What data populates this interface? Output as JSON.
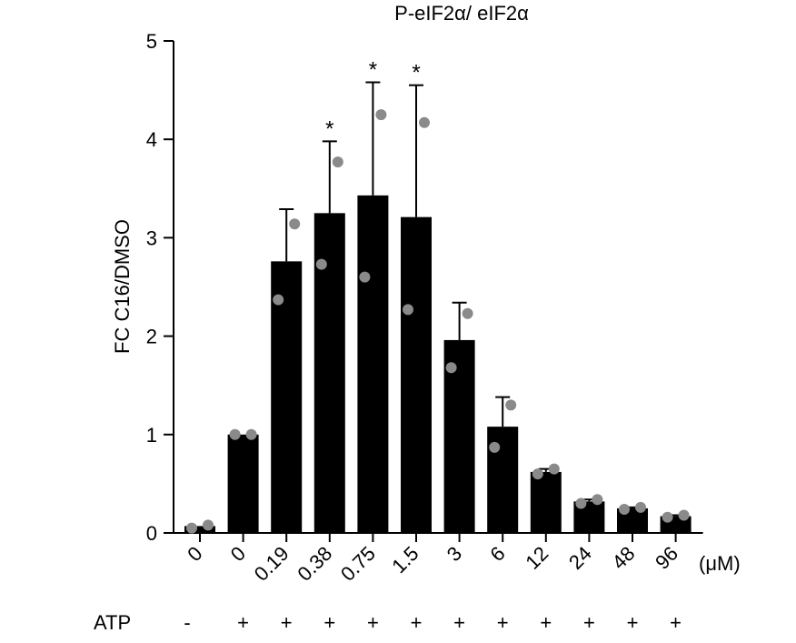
{
  "chart_data": {
    "type": "bar",
    "title": "P-eIF2α/ eIF2α",
    "xlabel": "",
    "ylabel": "FC C16/DMSO",
    "ylim": [
      0,
      5
    ],
    "yticks": [
      0,
      1,
      2,
      3,
      4,
      5
    ],
    "categories": [
      "0",
      "0",
      "0.19",
      "0.38",
      "0.75",
      "1.5",
      "3",
      "6",
      "12",
      "24",
      "48",
      "96"
    ],
    "x_unit": "(μM)",
    "values": [
      0.07,
      1.0,
      2.76,
      3.25,
      3.43,
      3.21,
      1.96,
      1.08,
      0.62,
      0.32,
      0.25,
      0.17
    ],
    "error_upper": [
      0.07,
      1.0,
      3.29,
      3.98,
      4.58,
      4.55,
      2.34,
      1.38,
      0.65,
      0.34,
      0.26,
      0.18
    ],
    "points": [
      [
        0.05,
        0.08
      ],
      [
        1.0,
        1.0
      ],
      [
        2.37,
        3.14
      ],
      [
        2.73,
        3.77
      ],
      [
        2.6,
        4.25
      ],
      [
        2.27,
        4.17
      ],
      [
        1.68,
        2.23
      ],
      [
        0.87,
        1.3
      ],
      [
        0.6,
        0.65
      ],
      [
        0.3,
        0.34
      ],
      [
        0.24,
        0.26
      ],
      [
        0.16,
        0.18
      ]
    ],
    "significance": [
      "",
      "",
      "",
      "*",
      "*",
      "*",
      "",
      "",
      "",
      "",
      "",
      ""
    ],
    "atp_label": "ATP",
    "atp": [
      "-",
      "+",
      "+",
      "+",
      "+",
      "+",
      "+",
      "+",
      "+",
      "+",
      "+",
      "+"
    ],
    "bar_color": "#000000",
    "point_color": "#8a8a8a",
    "grid": false,
    "legend": "none"
  }
}
